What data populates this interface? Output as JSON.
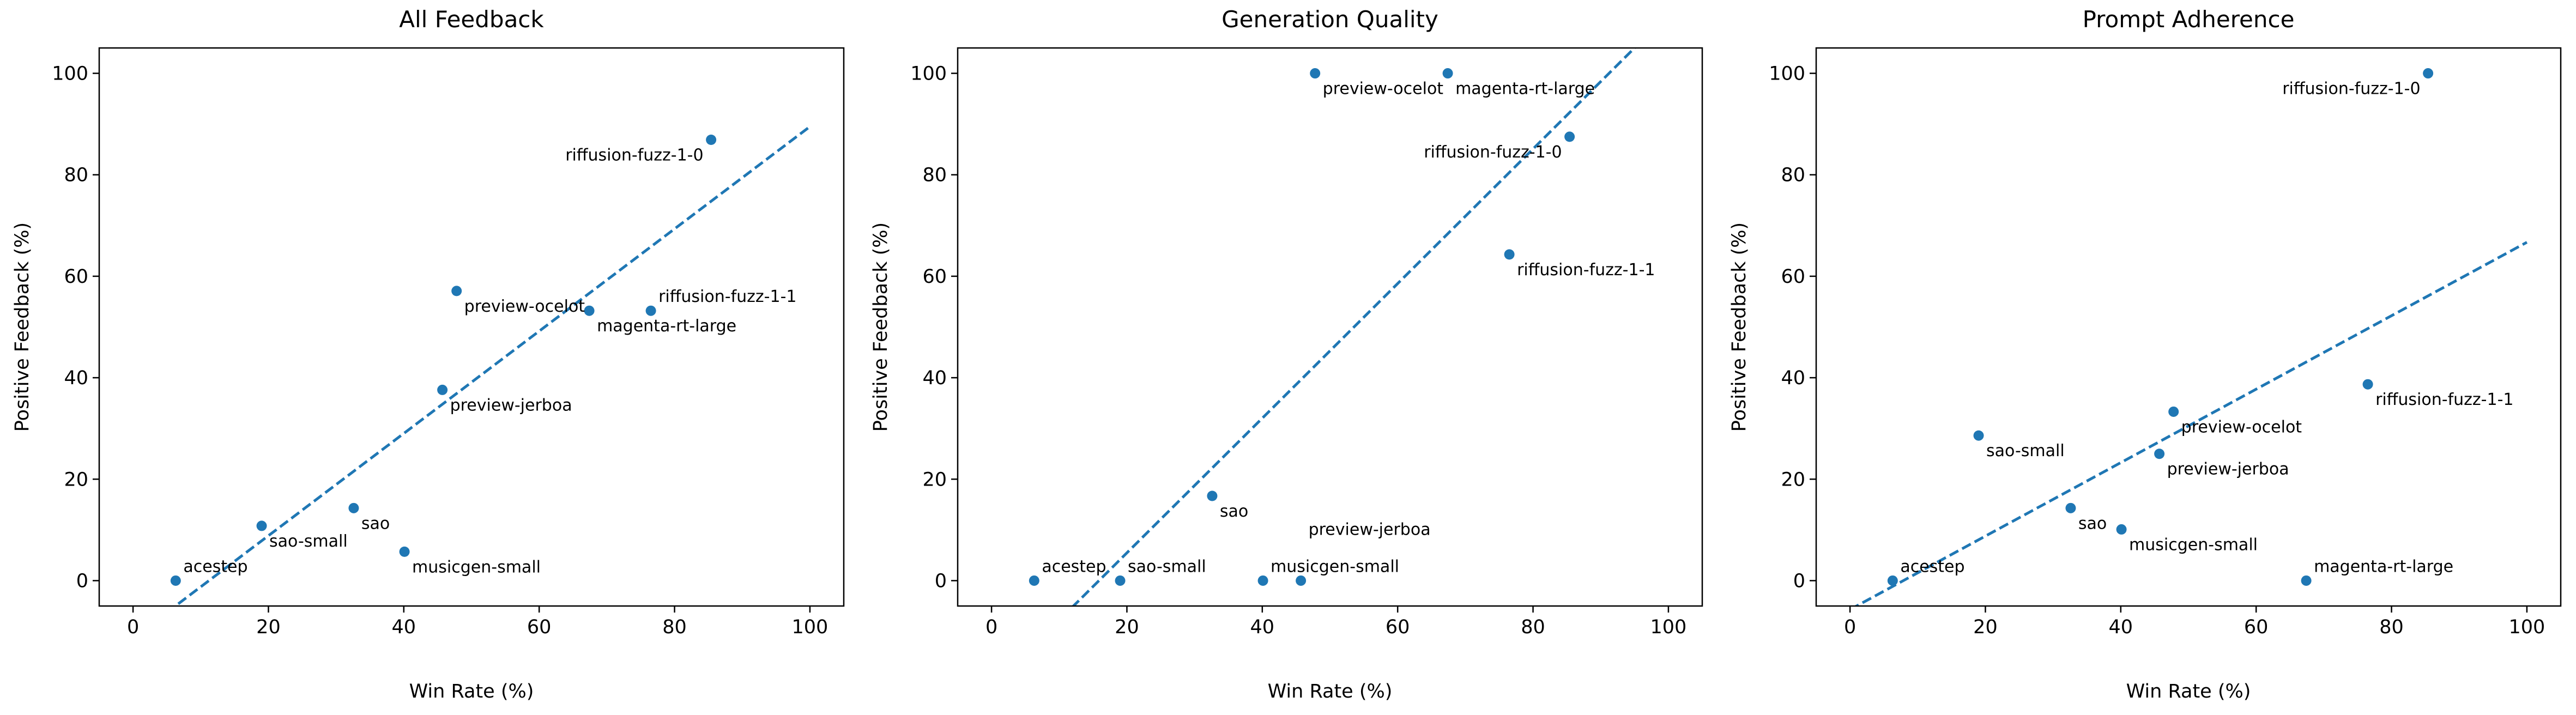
{
  "chart_data": [
    {
      "type": "scatter",
      "title": "All Feedback",
      "xlabel": "Win Rate (%)",
      "ylabel": "Positive Feedback (%)",
      "xlim": [
        -5,
        105
      ],
      "ylim": [
        -5,
        105
      ],
      "xticks": [
        "0",
        "20",
        "40",
        "60",
        "80",
        "100"
      ],
      "yticks": [
        "0",
        "20",
        "40",
        "60",
        "80",
        "100"
      ],
      "grid": false,
      "color": "#1f77b4",
      "points": [
        {
          "label": "acestep",
          "x": 6.3,
          "y": 0
        },
        {
          "label": "sao-small",
          "x": 19.0,
          "y": 10.8
        },
        {
          "label": "sao",
          "x": 32.6,
          "y": 14.3
        },
        {
          "label": "musicgen-small",
          "x": 40.1,
          "y": 5.7
        },
        {
          "label": "preview-jerboa",
          "x": 45.7,
          "y": 37.6
        },
        {
          "label": "preview-ocelot",
          "x": 47.8,
          "y": 57.1
        },
        {
          "label": "magenta-rt-large",
          "x": 67.4,
          "y": 53.2
        },
        {
          "label": "riffusion-fuzz-1-1",
          "x": 76.5,
          "y": 53.2
        },
        {
          "label": "riffusion-fuzz-1-0",
          "x": 85.4,
          "y": 86.9
        }
      ],
      "trendline": {
        "slope": 1.008,
        "intercept": -11.3,
        "x_range": [
          0,
          100
        ],
        "style": "dashed"
      }
    },
    {
      "type": "scatter",
      "title": "Generation Quality",
      "xlabel": "Win Rate (%)",
      "ylabel": "Positive Feedback (%)",
      "xlim": [
        -5,
        105
      ],
      "ylim": [
        -5,
        105
      ],
      "xticks": [
        "0",
        "20",
        "40",
        "60",
        "80",
        "100"
      ],
      "yticks": [
        "0",
        "20",
        "40",
        "60",
        "80",
        "100"
      ],
      "grid": false,
      "color": "#1f77b4",
      "points": [
        {
          "label": "acestep",
          "x": 6.3,
          "y": 0
        },
        {
          "label": "sao-small",
          "x": 19.0,
          "y": 0
        },
        {
          "label": "sao",
          "x": 32.6,
          "y": 16.7
        },
        {
          "label": "musicgen-small",
          "x": 40.1,
          "y": 0
        },
        {
          "label": "preview-jerboa",
          "x": 45.7,
          "y": 0
        },
        {
          "label": "preview-ocelot",
          "x": 47.8,
          "y": 100
        },
        {
          "label": "magenta-rt-large",
          "x": 67.4,
          "y": 100
        },
        {
          "label": "riffusion-fuzz-1-1",
          "x": 76.5,
          "y": 64.3
        },
        {
          "label": "riffusion-fuzz-1-0",
          "x": 85.4,
          "y": 87.5
        }
      ],
      "trendline": {
        "slope": 1.327,
        "intercept": -21.06,
        "x_range": [
          0,
          100
        ],
        "style": "dashed"
      }
    },
    {
      "type": "scatter",
      "title": "Prompt Adherence",
      "xlabel": "Win Rate (%)",
      "ylabel": "Positive Feedback (%)",
      "xlim": [
        -5,
        105
      ],
      "ylim": [
        -5,
        105
      ],
      "xticks": [
        "0",
        "20",
        "40",
        "60",
        "80",
        "100"
      ],
      "yticks": [
        "0",
        "20",
        "40",
        "60",
        "80",
        "100"
      ],
      "grid": false,
      "color": "#1f77b4",
      "points": [
        {
          "label": "acestep",
          "x": 6.3,
          "y": 0
        },
        {
          "label": "sao-small",
          "x": 19.0,
          "y": 28.6
        },
        {
          "label": "sao",
          "x": 32.6,
          "y": 14.3
        },
        {
          "label": "musicgen-small",
          "x": 40.1,
          "y": 10.1
        },
        {
          "label": "preview-jerboa",
          "x": 45.7,
          "y": 25.0
        },
        {
          "label": "preview-ocelot",
          "x": 47.8,
          "y": 33.3
        },
        {
          "label": "magenta-rt-large",
          "x": 67.4,
          "y": 0
        },
        {
          "label": "riffusion-fuzz-1-1",
          "x": 76.5,
          "y": 38.7
        },
        {
          "label": "riffusion-fuzz-1-0",
          "x": 85.4,
          "y": 100
        }
      ],
      "trendline": {
        "slope": 0.724,
        "intercept": -5.7,
        "x_range": [
          0,
          100
        ],
        "style": "dashed"
      }
    }
  ]
}
